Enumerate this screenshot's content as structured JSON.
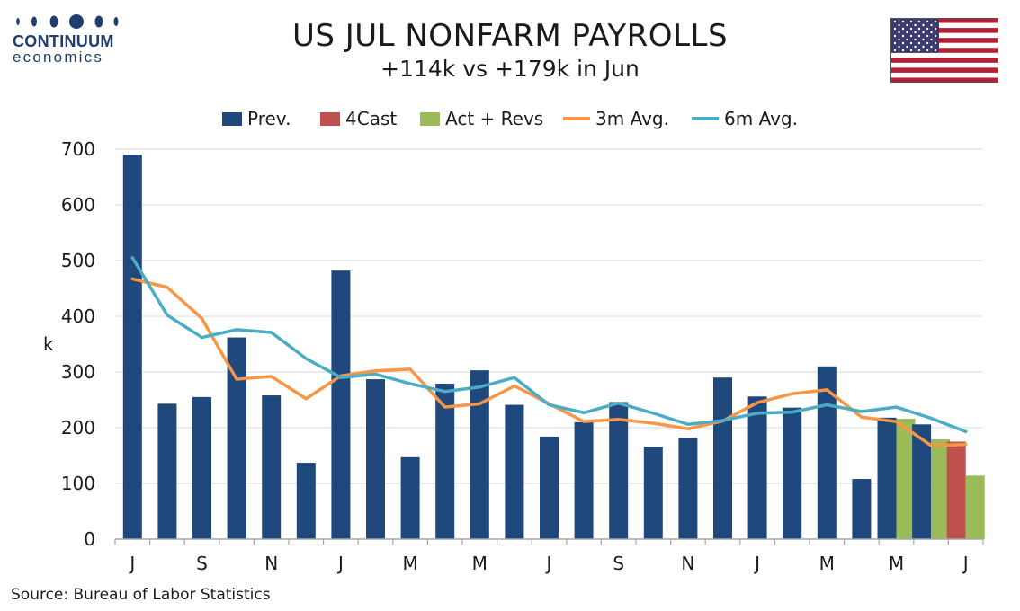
{
  "logo": {
    "name": "CONTINUUM",
    "sub": "economics"
  },
  "source": "Source: Bureau of Labor Statistics",
  "colors": {
    "prev": "#1f497d",
    "forecast": "#c0504d",
    "actual": "#9bbb59",
    "avg3": "#f79646",
    "avg6": "#4bacc6"
  },
  "chart_data": {
    "type": "bar",
    "title": "US JUL NONFARM PAYROLLS",
    "subtitle": "+114k vs +179k in Jun",
    "ylabel": "k",
    "ylim": [
      0,
      700
    ],
    "yticks": [
      0,
      100,
      200,
      300,
      400,
      500,
      600,
      700
    ],
    "grid": true,
    "legend_position": "top",
    "n_periods": 25,
    "xtick_labels": [
      "J",
      "S",
      "N",
      "J",
      "M",
      "M",
      "J",
      "S",
      "N",
      "J",
      "M",
      "M",
      "J"
    ],
    "xtick_index": [
      0,
      2,
      4,
      6,
      8,
      10,
      12,
      14,
      16,
      18,
      20,
      22,
      24
    ],
    "series": [
      {
        "name": "Prev.",
        "kind": "bar",
        "values": [
          690,
          243,
          255,
          362,
          258,
          137,
          482,
          287,
          147,
          279,
          303,
          241,
          184,
          210,
          246,
          166,
          182,
          290,
          256,
          236,
          310,
          108,
          218,
          206,
          null
        ]
      },
      {
        "name": "4Cast",
        "kind": "bar",
        "values": [
          null,
          null,
          null,
          null,
          null,
          null,
          null,
          null,
          null,
          null,
          null,
          null,
          null,
          null,
          null,
          null,
          null,
          null,
          null,
          null,
          null,
          null,
          null,
          null,
          175
        ]
      },
      {
        "name": "Act + Revs",
        "kind": "bar",
        "values": [
          null,
          null,
          null,
          null,
          null,
          null,
          null,
          null,
          null,
          null,
          null,
          null,
          null,
          null,
          null,
          null,
          null,
          null,
          null,
          null,
          null,
          null,
          216,
          179,
          114
        ]
      },
      {
        "name": "3m Avg.",
        "kind": "line",
        "values": [
          467,
          452,
          396,
          287,
          292,
          252,
          293,
          302,
          305,
          237,
          243,
          275,
          243,
          211,
          215,
          208,
          198,
          212,
          245,
          261,
          268,
          219,
          211,
          168,
          170
        ]
      },
      {
        "name": "6m Avg.",
        "kind": "line",
        "values": [
          505,
          402,
          362,
          376,
          371,
          324,
          290,
          296,
          279,
          265,
          273,
          290,
          241,
          227,
          244,
          226,
          206,
          213,
          226,
          228,
          241,
          229,
          237,
          217,
          193
        ]
      }
    ]
  }
}
